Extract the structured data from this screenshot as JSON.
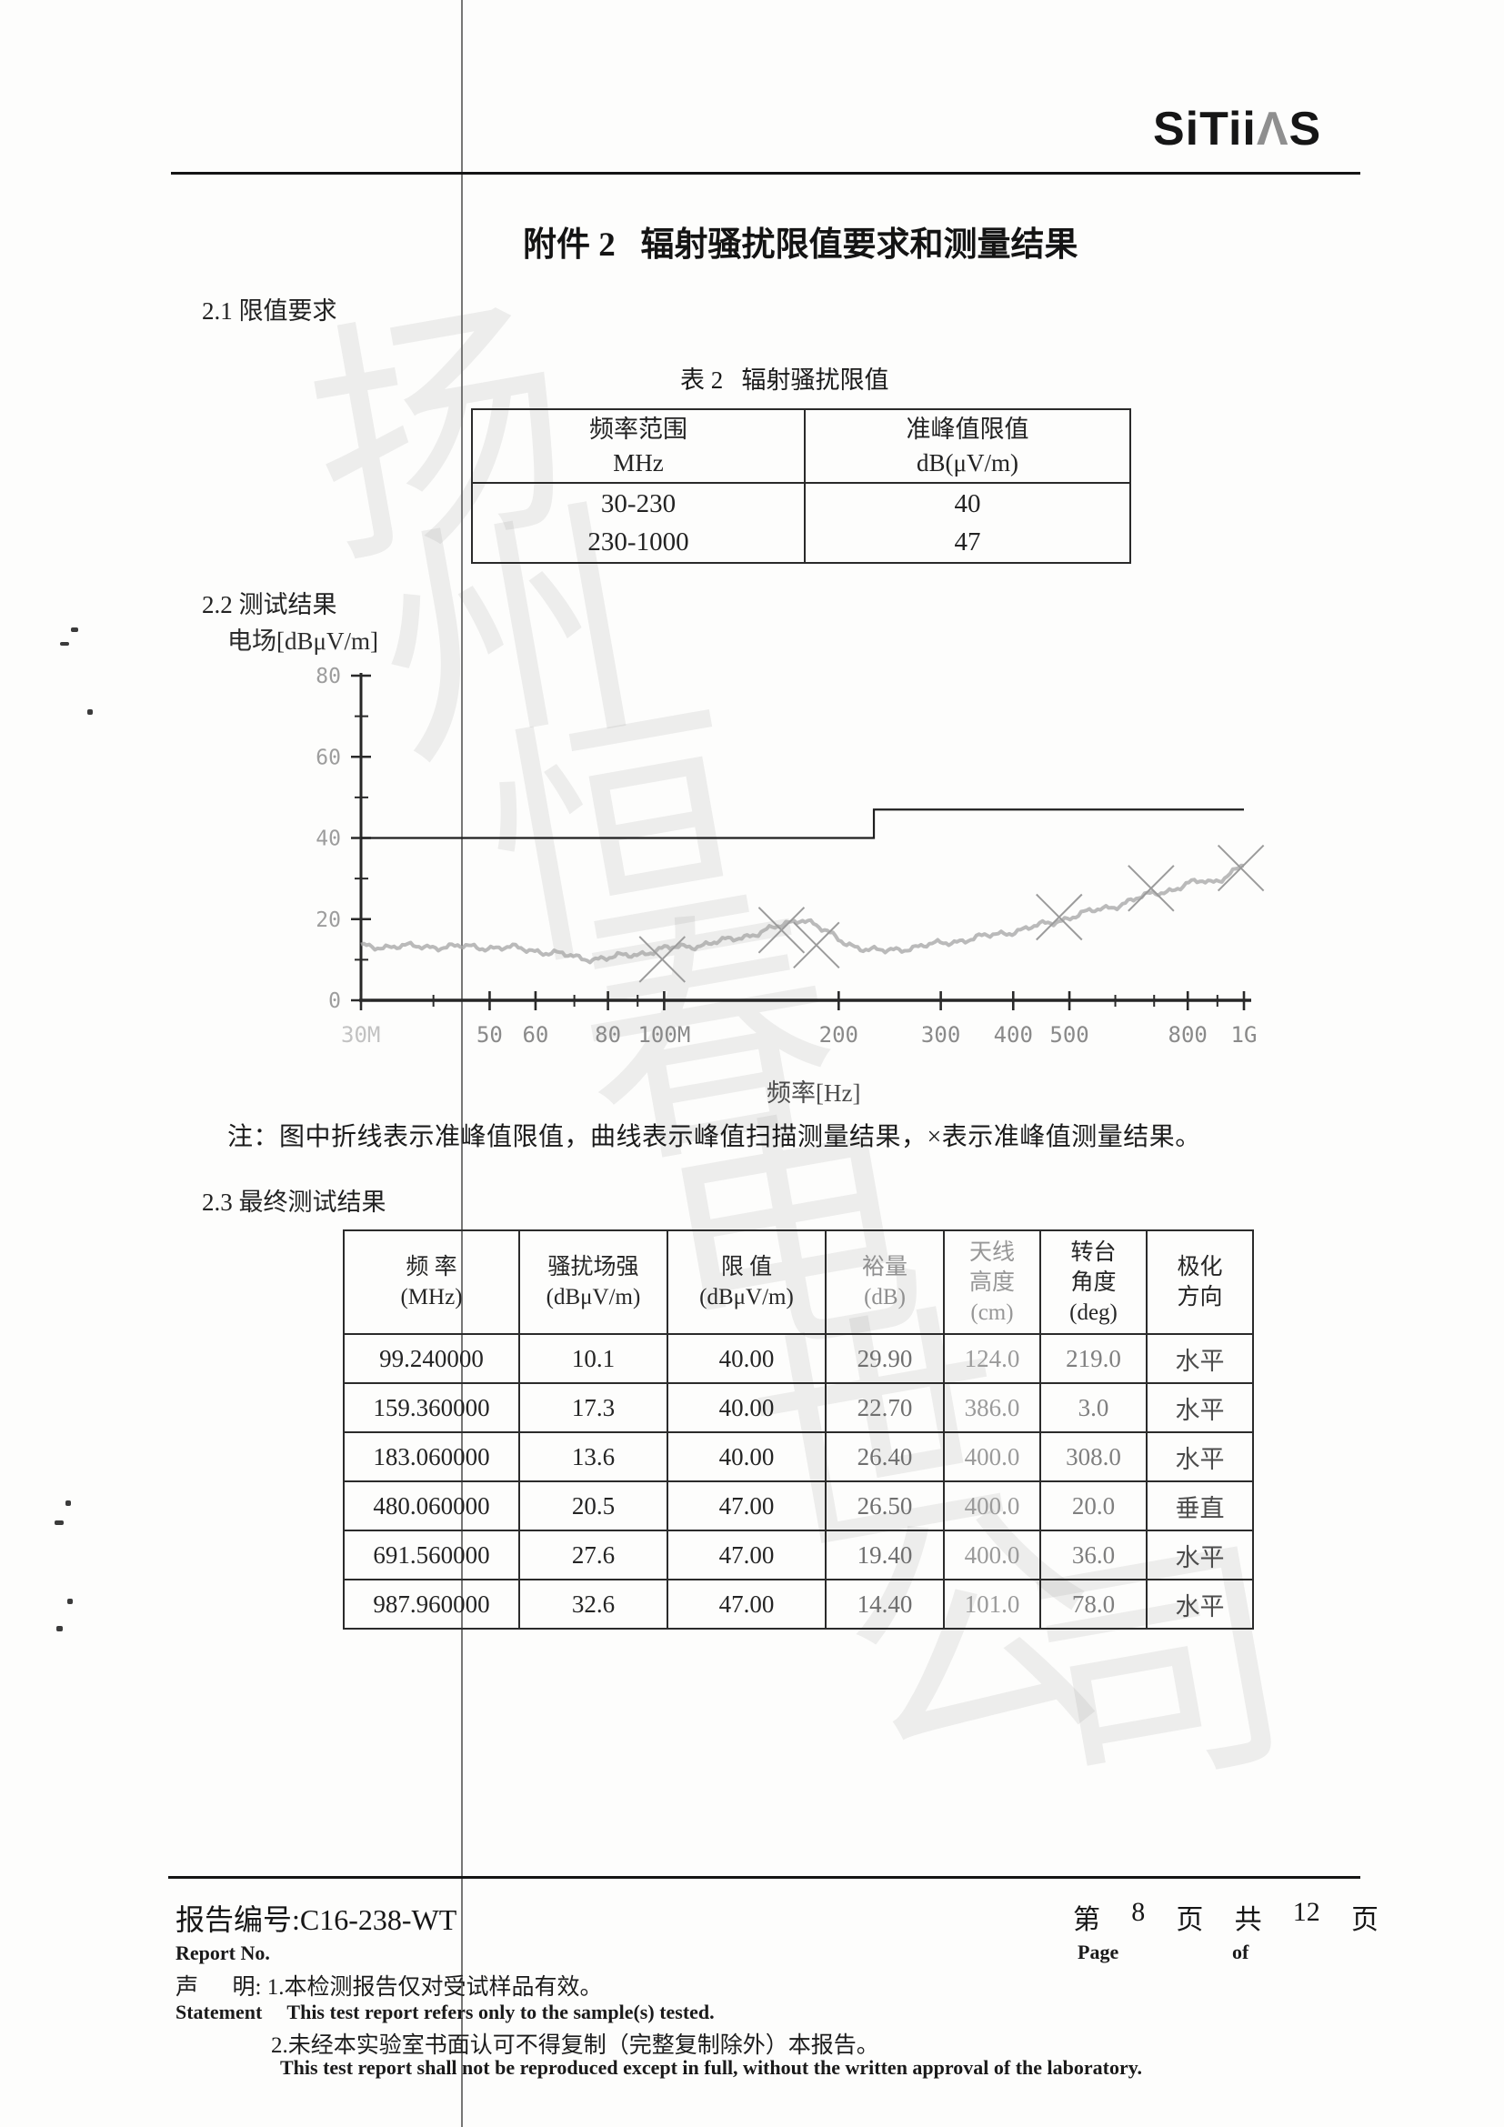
{
  "logo": {
    "part1": "SiTii",
    "part2": "Λ",
    "part3": "S"
  },
  "title": "附件 2   辐射骚扰限值要求和测量结果",
  "sections": {
    "s21": "2.1 限值要求",
    "s22": "2.2 测试结果",
    "s23": "2.3 最终测试结果"
  },
  "limit_table": {
    "caption": "表 2   辐射骚扰限值",
    "col1_header": [
      "频率范围",
      "MHz"
    ],
    "col2_header": [
      "准峰值限值",
      "dB(μV/m)"
    ],
    "col1_values": [
      "30-230",
      "230-1000"
    ],
    "col2_values": [
      "40",
      "47"
    ]
  },
  "chart_data": {
    "type": "line",
    "title": "",
    "ylabel": "电场[dBμV/m]",
    "xlabel": "频率[Hz]",
    "x_scale": "log",
    "xlim_mhz": [
      30,
      1000
    ],
    "ylim": [
      0,
      80
    ],
    "grid": false,
    "y_major_ticks": [
      {
        "v": 0,
        "label": "0"
      },
      {
        "v": 20,
        "label": "20"
      },
      {
        "v": 40,
        "label": "40"
      },
      {
        "v": 60,
        "label": "60"
      },
      {
        "v": 80,
        "label": "80"
      }
    ],
    "y_minor_ticks": [
      10,
      30,
      50,
      70
    ],
    "x_major_ticks": [
      {
        "mhz": 30,
        "label": "30M",
        "faint": true
      },
      {
        "mhz": 50,
        "label": "50"
      },
      {
        "mhz": 60,
        "label": "60"
      },
      {
        "mhz": 80,
        "label": "80"
      },
      {
        "mhz": 100,
        "label": "100M"
      },
      {
        "mhz": 200,
        "label": "200"
      },
      {
        "mhz": 300,
        "label": "300"
      },
      {
        "mhz": 400,
        "label": "400"
      },
      {
        "mhz": 500,
        "label": "500"
      },
      {
        "mhz": 800,
        "label": "800"
      },
      {
        "mhz": 1000,
        "label": "1G"
      }
    ],
    "x_minor_ticks": [
      40,
      70,
      90,
      600,
      700,
      900
    ],
    "series": [
      {
        "name": "准峰值限值",
        "style": "limit-polyline",
        "points_mhz_db": [
          [
            30,
            40
          ],
          [
            230,
            40
          ],
          [
            230,
            47
          ],
          [
            1000,
            47
          ]
        ]
      },
      {
        "name": "峰值扫描测量结果",
        "style": "noisy-curve",
        "points_mhz_db": [
          [
            30,
            13.3
          ],
          [
            45,
            13.2
          ],
          [
            55,
            12.9
          ],
          [
            65,
            11.6
          ],
          [
            72,
            10.3
          ],
          [
            80,
            10.4
          ],
          [
            90,
            11.4
          ],
          [
            100,
            12.7
          ],
          [
            115,
            13.6
          ],
          [
            130,
            14.9
          ],
          [
            145,
            16.6
          ],
          [
            160,
            18.4
          ],
          [
            172,
            20.2
          ],
          [
            180,
            19.2
          ],
          [
            190,
            16.8
          ],
          [
            205,
            14.2
          ],
          [
            225,
            12.4
          ],
          [
            240,
            12.1
          ],
          [
            260,
            12.8
          ],
          [
            300,
            14.0
          ],
          [
            340,
            15.2
          ],
          [
            380,
            16.4
          ],
          [
            420,
            17.6
          ],
          [
            470,
            19.3
          ],
          [
            510,
            20.8
          ],
          [
            560,
            22.3
          ],
          [
            610,
            23.6
          ],
          [
            660,
            25.2
          ],
          [
            700,
            26.4
          ],
          [
            750,
            27.2
          ],
          [
            800,
            28.6
          ],
          [
            850,
            29.4
          ],
          [
            880,
            29.1
          ],
          [
            920,
            30.3
          ],
          [
            960,
            31.8
          ],
          [
            1000,
            33.4
          ]
        ]
      },
      {
        "name": "准峰值测量结果",
        "style": "x-markers",
        "points_mhz_db": [
          [
            99.24,
            10.1
          ],
          [
            159.36,
            17.3
          ],
          [
            183.06,
            13.6
          ],
          [
            480.06,
            20.5
          ],
          [
            691.56,
            27.6
          ],
          [
            987.96,
            32.6
          ]
        ]
      }
    ]
  },
  "note": "注：图中折线表示准峰值限值，曲线表示峰值扫描测量结果，×表示准峰值测量结果。",
  "results_table": {
    "headers": [
      [
        "频   率",
        "(MHz)"
      ],
      [
        "骚扰场强",
        "(dBμV/m)"
      ],
      [
        "限   值",
        "(dBμV/m)"
      ],
      [
        "裕量",
        "(dB)"
      ],
      [
        "天线",
        "高度",
        "(cm)"
      ],
      [
        "转台",
        "角度",
        "(deg)"
      ],
      [
        "极化",
        "方向"
      ]
    ],
    "rows": [
      [
        "99.240000",
        "10.1",
        "40.00",
        "29.90",
        "124.0",
        "219.0",
        "水平"
      ],
      [
        "159.360000",
        "17.3",
        "40.00",
        "22.70",
        "386.0",
        "3.0",
        "水平"
      ],
      [
        "183.060000",
        "13.6",
        "40.00",
        "26.40",
        "400.0",
        "308.0",
        "水平"
      ],
      [
        "480.060000",
        "20.5",
        "47.00",
        "26.50",
        "400.0",
        "20.0",
        "垂直"
      ],
      [
        "691.560000",
        "27.6",
        "47.00",
        "19.40",
        "400.0",
        "36.0",
        "水平"
      ],
      [
        "987.960000",
        "32.6",
        "47.00",
        "14.40",
        "101.0",
        "78.0",
        "水平"
      ]
    ]
  },
  "footer": {
    "report_no": "报告编号:C16-238-WT",
    "report_no_en": "Report No.",
    "statement_cn1": "声      明: 1.本检测报告仅对受试样品有效。",
    "statement_en1": "Statement     This test report refers only to the sample(s) tested.",
    "statement_cn2": "2.未经本实验室书面认可不得复制（完整复制除外）本报告。",
    "statement_en2": "This test report shall not be reproduced except in full, without the written approval of the laboratory.",
    "page_line": [
      "第",
      "8",
      "页",
      "共",
      "12",
      "页"
    ],
    "page_en": "Page",
    "of_en": "of"
  },
  "watermark_chars": [
    "扬",
    "州",
    "恒",
    "春",
    "电",
    "世",
    "公",
    "司"
  ]
}
